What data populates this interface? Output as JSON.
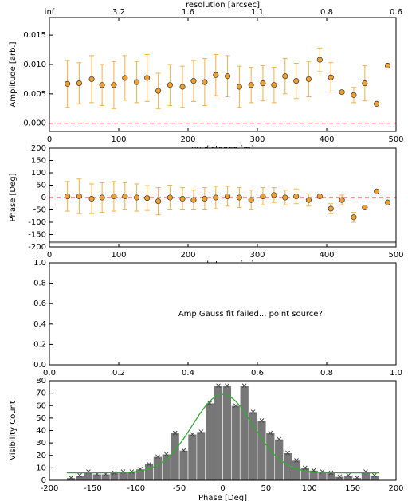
{
  "chart_data": [
    {
      "type": "scatter",
      "ylabel": "Amplitude [arb.]",
      "xlabel": "uv-distance [m]",
      "top_label": "resolution [arcsec]",
      "top_ticks": [
        {
          "value": 0,
          "label": "inf"
        },
        {
          "value": 100,
          "label": "3.2"
        },
        {
          "value": 200,
          "label": "1.6"
        },
        {
          "value": 300,
          "label": "1.1"
        },
        {
          "value": 400,
          "label": "0.8"
        },
        {
          "value": 500,
          "label": "0.6"
        }
      ],
      "xlim": [
        0,
        500
      ],
      "xticks": [
        0,
        100,
        200,
        300,
        400,
        500
      ],
      "ylim": [
        -0.0014,
        0.018
      ],
      "yticks": [
        {
          "value": 0,
          "label": "0.000"
        },
        {
          "value": 0.005,
          "label": "0.005"
        },
        {
          "value": 0.01,
          "label": "0.010"
        },
        {
          "value": 0.015,
          "label": "0.015"
        }
      ],
      "x": [
        26,
        43,
        61,
        76,
        93,
        109,
        126,
        141,
        157,
        174,
        192,
        208,
        224,
        240,
        257,
        274,
        291,
        308,
        324,
        340,
        356,
        374,
        390,
        406,
        422,
        439,
        455,
        472,
        488
      ],
      "values": [
        0.0067,
        0.0068,
        0.0075,
        0.0065,
        0.0065,
        0.0077,
        0.007,
        0.0077,
        0.0055,
        0.0065,
        0.0062,
        0.0072,
        0.007,
        0.0082,
        0.008,
        0.0062,
        0.0065,
        0.0068,
        0.0065,
        0.008,
        0.0072,
        0.0075,
        0.0108,
        0.0078,
        0.0053,
        0.0048,
        0.0068,
        0.0033,
        0.0098
      ],
      "errors": [
        0.004,
        0.0035,
        0.004,
        0.0035,
        0.004,
        0.0038,
        0.0035,
        0.004,
        0.003,
        0.0035,
        0.0035,
        0.0035,
        0.004,
        0.0035,
        0.0035,
        0.0035,
        0.003,
        0.003,
        0.003,
        0.003,
        0.003,
        0.003,
        0.002,
        0.0025,
        0,
        0.0013,
        0.003,
        0,
        0
      ],
      "color": "#f0a030",
      "error_color": "#f5b041",
      "reference_lines": [
        {
          "value": 0,
          "color": "#ff5555",
          "dashed": true
        }
      ]
    },
    {
      "type": "scatter",
      "ylabel": "Phase [Deg]",
      "xlabel": "uv-distance [m]",
      "xlim": [
        0,
        500
      ],
      "xticks": [
        0,
        100,
        200,
        300,
        400,
        500
      ],
      "ylim": [
        -200,
        200
      ],
      "yticks": [
        -200,
        -150,
        -100,
        -50,
        0,
        50,
        100,
        150,
        200
      ],
      "x": [
        26,
        43,
        61,
        76,
        93,
        109,
        126,
        141,
        157,
        174,
        192,
        208,
        224,
        240,
        257,
        274,
        291,
        308,
        324,
        340,
        356,
        374,
        390,
        406,
        422,
        439,
        455,
        472,
        488
      ],
      "values": [
        5,
        5,
        -5,
        0,
        5,
        5,
        0,
        -2,
        -15,
        0,
        -5,
        -10,
        -5,
        0,
        5,
        0,
        -10,
        5,
        10,
        0,
        5,
        -10,
        5,
        -45,
        -10,
        -80,
        -40,
        25,
        -20
      ],
      "errors": [
        60,
        70,
        60,
        60,
        60,
        55,
        55,
        50,
        55,
        50,
        45,
        40,
        45,
        45,
        40,
        40,
        40,
        35,
        30,
        30,
        30,
        25,
        0,
        20,
        20,
        20,
        0,
        0,
        0
      ],
      "color": "#f0a030",
      "error_color": "#f5b041",
      "reference_lines": [
        {
          "value": 0,
          "color": "#ff5555",
          "dashed": true
        },
        {
          "value": -180,
          "color": "#888888",
          "dashed": false
        }
      ]
    },
    {
      "type": "text",
      "annotation": "Amp Gauss fit failed... point source?",
      "annotation_position": [
        0.58,
        0.5
      ],
      "xlim": [
        0,
        1
      ],
      "xticks": [
        {
          "value": 0,
          "label": "0.0"
        },
        {
          "value": 0.2,
          "label": "0.2"
        },
        {
          "value": 0.4,
          "label": "0.4"
        },
        {
          "value": 0.6,
          "label": "0.6"
        },
        {
          "value": 0.8,
          "label": "0.8"
        },
        {
          "value": 1,
          "label": "1.0"
        }
      ],
      "ylim": [
        0,
        1
      ],
      "yticks": [
        {
          "value": 0,
          "label": "0.0"
        },
        {
          "value": 0.2,
          "label": "0.2"
        },
        {
          "value": 0.4,
          "label": "0.4"
        },
        {
          "value": 0.6,
          "label": "0.6"
        },
        {
          "value": 0.8,
          "label": "0.8"
        },
        {
          "value": 1,
          "label": "1.0"
        }
      ]
    },
    {
      "type": "histogram",
      "xlabel": "Phase [Deg]",
      "ylabel": "Visibility Count",
      "xlim": [
        -200,
        200
      ],
      "xticks": [
        -200,
        -150,
        -100,
        -50,
        0,
        50,
        100,
        150,
        200
      ],
      "ylim": [
        0,
        80
      ],
      "yticks": [
        0,
        10,
        20,
        30,
        40,
        50,
        60,
        70,
        80
      ],
      "bins": [
        -180,
        -170,
        -160,
        -150,
        -140,
        -130,
        -120,
        -110,
        -100,
        -90,
        -80,
        -70,
        -60,
        -50,
        -40,
        -30,
        -20,
        -10,
        0,
        10,
        20,
        30,
        40,
        50,
        60,
        70,
        80,
        90,
        100,
        110,
        120,
        130,
        140,
        150,
        160,
        170,
        180
      ],
      "counts": [
        2,
        4,
        7,
        5,
        5,
        6,
        7,
        7,
        9,
        13,
        19,
        21,
        38,
        24,
        37,
        39,
        62,
        76,
        76,
        60,
        76,
        55,
        48,
        38,
        33,
        22,
        16,
        10,
        8,
        7,
        6,
        3,
        4,
        2,
        7,
        4
      ],
      "color": "#777777",
      "fit": {
        "amplitude": 63,
        "center": 0,
        "sigma": 35,
        "offset": 6,
        "color": "#33aa33"
      }
    }
  ]
}
